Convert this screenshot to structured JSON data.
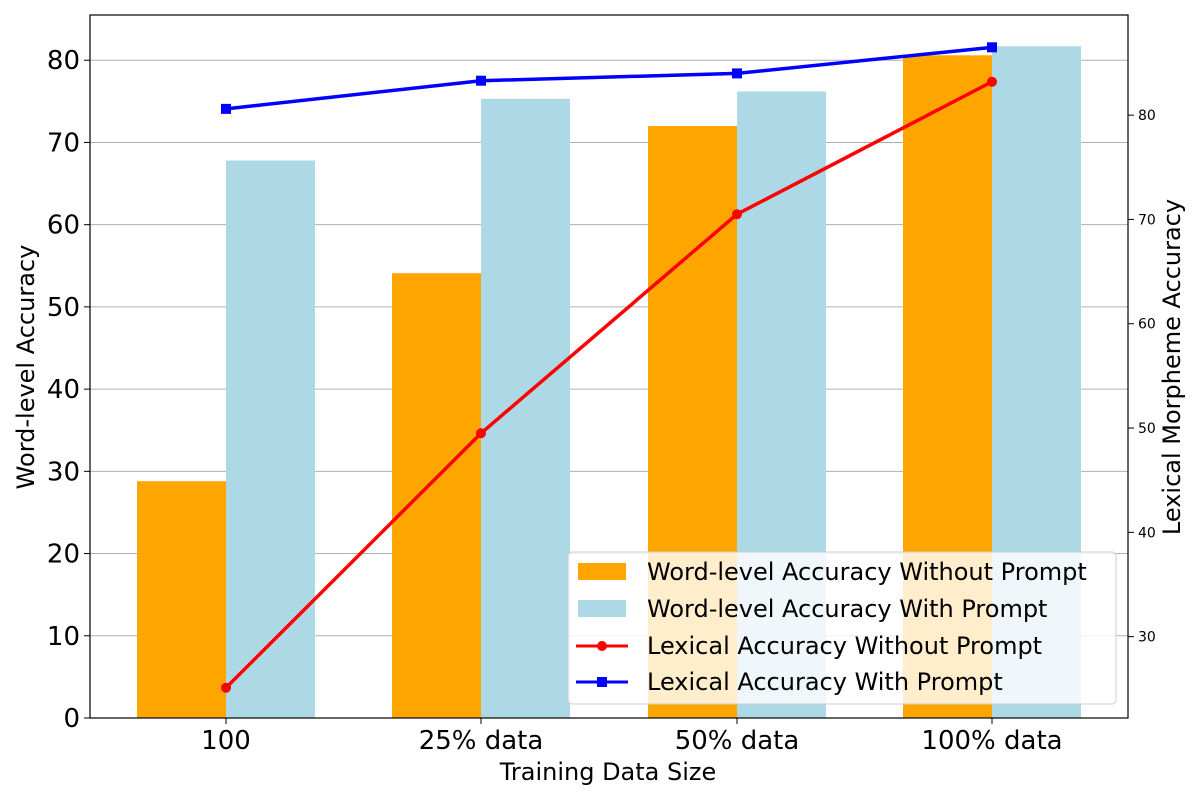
{
  "chart_data": {
    "type": "bar",
    "categories": [
      "100",
      "25% data",
      "50% data",
      "100% data"
    ],
    "xlabel": "Training Data Size",
    "ylabel": "Word-level Accuracy",
    "y2label": "Lexical Morpheme Accuracy",
    "ylim": [
      0,
      85.5
    ],
    "y2lim": [
      22.2,
      89.6
    ],
    "yticks": [
      "0",
      "10",
      "20",
      "30",
      "40",
      "50",
      "60",
      "70",
      "80"
    ],
    "y2ticks": [
      "30",
      "40",
      "50",
      "60",
      "70",
      "80"
    ],
    "grid": true,
    "legend_position": "bottom-right",
    "bar_series": [
      {
        "name": "Word-level Accuracy Without Prompt",
        "color": "#FFA500",
        "values": [
          28.8,
          54.1,
          72.0,
          80.6
        ]
      },
      {
        "name": "Word-level Accuracy With Prompt",
        "color": "#ADD8E6",
        "values": [
          67.8,
          75.3,
          76.2,
          81.7
        ]
      }
    ],
    "line_series": [
      {
        "name": "Lexical Accuracy Without Prompt",
        "color": "#FF0000",
        "marker": "circle",
        "axis": "right",
        "values": [
          25.1,
          49.5,
          70.5,
          83.2
        ]
      },
      {
        "name": "Lexical Accuracy With Prompt",
        "color": "#0000FF",
        "marker": "square",
        "axis": "right",
        "values": [
          80.6,
          83.3,
          84.0,
          86.5
        ]
      }
    ]
  }
}
